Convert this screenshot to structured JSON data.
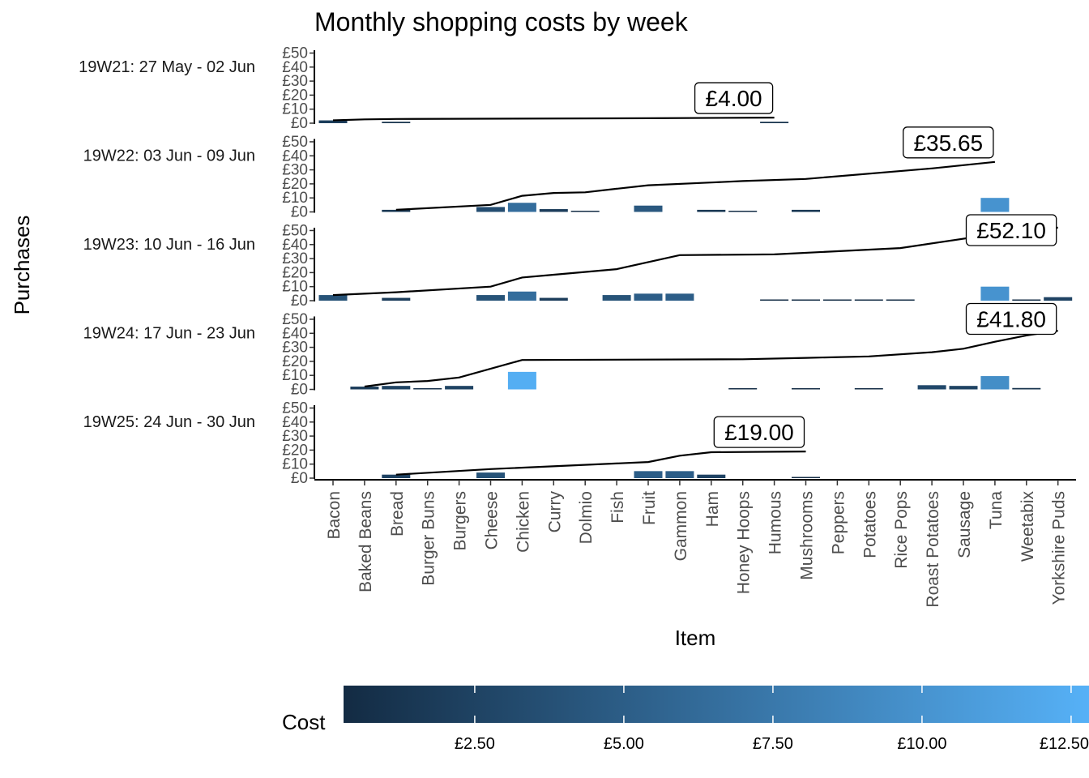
{
  "chart_data": {
    "type": "bar",
    "title": "Monthly shopping costs by week",
    "xlabel": "Item",
    "ylabel": "Purchases",
    "categories": [
      "Bacon",
      "Baked Beans",
      "Bread",
      "Burger Buns",
      "Burgers",
      "Cheese",
      "Chicken",
      "Curry",
      "Dolmio",
      "Fish",
      "Fruit",
      "Gammon",
      "Ham",
      "Honey Hoops",
      "Humous",
      "Mushrooms",
      "Peppers",
      "Potatoes",
      "Rice Pops",
      "Roast Potatoes",
      "Sausage",
      "Tuna",
      "Weetabix",
      "Yorkshire Puds"
    ],
    "y_ticks": [
      "£0",
      "£10",
      "£20",
      "£30",
      "£40",
      "£50"
    ],
    "ylim": [
      0,
      52
    ],
    "legend": {
      "title": "Cost",
      "position": "bottom",
      "range": [
        0.3,
        12.8
      ],
      "ticks": [
        {
          "value": 2.5,
          "label": "£2.50"
        },
        {
          "value": 5.0,
          "label": "£5.00"
        },
        {
          "value": 7.5,
          "label": "£7.50"
        },
        {
          "value": 10.0,
          "label": "£10.00"
        },
        {
          "value": 12.5,
          "label": "£12.50"
        }
      ],
      "colors": [
        "#132B43",
        "#56B1F7"
      ]
    },
    "line_color": "#000000",
    "panels": [
      {
        "week": "19W21: 27 May - 02 Jun",
        "total_label": "£4.00",
        "bars": [
          {
            "item": "Bacon",
            "value": 2.0
          },
          {
            "item": "Bread",
            "value": 1.0
          },
          {
            "item": "Humous",
            "value": 1.0
          }
        ],
        "cumulative": [
          {
            "x": 0,
            "y": 2.0
          },
          {
            "x": 1,
            "y": 2.7
          },
          {
            "x": 2,
            "y": 3.0
          },
          {
            "x": 10,
            "y": 3.5
          },
          {
            "x": 14,
            "y": 4.0
          }
        ]
      },
      {
        "week": "19W22: 03 Jun - 09 Jun",
        "total_label": "£35.65",
        "bars": [
          {
            "item": "Bread",
            "value": 1.5
          },
          {
            "item": "Cheese",
            "value": 3.5
          },
          {
            "item": "Chicken",
            "value": 6.5
          },
          {
            "item": "Curry",
            "value": 2.0
          },
          {
            "item": "Dolmio",
            "value": 0.5
          },
          {
            "item": "Fruit",
            "value": 4.5
          },
          {
            "item": "Ham",
            "value": 1.5
          },
          {
            "item": "Honey Hoops",
            "value": 0.5
          },
          {
            "item": "Mushrooms",
            "value": 1.5
          },
          {
            "item": "Tuna",
            "value": 10.0
          }
        ],
        "cumulative": [
          {
            "x": 2,
            "y": 1.5
          },
          {
            "x": 5,
            "y": 5.0
          },
          {
            "x": 6,
            "y": 11.5
          },
          {
            "x": 7,
            "y": 13.5
          },
          {
            "x": 8,
            "y": 14.0
          },
          {
            "x": 9,
            "y": 16.5
          },
          {
            "x": 10,
            "y": 19.0
          },
          {
            "x": 12,
            "y": 21.0
          },
          {
            "x": 13,
            "y": 22.0
          },
          {
            "x": 15,
            "y": 23.5
          },
          {
            "x": 19,
            "y": 31.0
          },
          {
            "x": 21,
            "y": 35.65
          }
        ]
      },
      {
        "week": "19W23: 10 Jun - 16 Jun",
        "total_label": "£52.10",
        "bars": [
          {
            "item": "Bacon",
            "value": 4.0
          },
          {
            "item": "Bread",
            "value": 2.0
          },
          {
            "item": "Cheese",
            "value": 4.0
          },
          {
            "item": "Chicken",
            "value": 6.5
          },
          {
            "item": "Curry",
            "value": 2.0
          },
          {
            "item": "Fish",
            "value": 4.0
          },
          {
            "item": "Fruit",
            "value": 5.0
          },
          {
            "item": "Gammon",
            "value": 5.0
          },
          {
            "item": "Humous",
            "value": 0.5
          },
          {
            "item": "Mushrooms",
            "value": 0.5
          },
          {
            "item": "Peppers",
            "value": 0.5
          },
          {
            "item": "Potatoes",
            "value": 0.5
          },
          {
            "item": "Rice Pops",
            "value": 0.5
          },
          {
            "item": "Tuna",
            "value": 10.0
          },
          {
            "item": "Weetabix",
            "value": 0.5
          },
          {
            "item": "Yorkshire Puds",
            "value": 2.5
          }
        ],
        "cumulative": [
          {
            "x": 0,
            "y": 4.0
          },
          {
            "x": 2,
            "y": 6.0
          },
          {
            "x": 5,
            "y": 10.0
          },
          {
            "x": 6,
            "y": 16.5
          },
          {
            "x": 7,
            "y": 18.5
          },
          {
            "x": 9,
            "y": 22.5
          },
          {
            "x": 10,
            "y": 27.5
          },
          {
            "x": 11,
            "y": 32.5
          },
          {
            "x": 14,
            "y": 33.0
          },
          {
            "x": 18,
            "y": 37.5
          },
          {
            "x": 21,
            "y": 47.5
          },
          {
            "x": 22,
            "y": 49.0
          },
          {
            "x": 23,
            "y": 52.1
          }
        ]
      },
      {
        "week": "19W24: 17 Jun - 23 Jun",
        "total_label": "£41.80",
        "bars": [
          {
            "item": "Baked Beans",
            "value": 2.0
          },
          {
            "item": "Bread",
            "value": 2.5
          },
          {
            "item": "Burger Buns",
            "value": 0.8
          },
          {
            "item": "Burgers",
            "value": 2.5
          },
          {
            "item": "Chicken",
            "value": 12.5
          },
          {
            "item": "Honey Hoops",
            "value": 0.5
          },
          {
            "item": "Mushrooms",
            "value": 0.5
          },
          {
            "item": "Potatoes",
            "value": 0.5
          },
          {
            "item": "Roast Potatoes",
            "value": 3.0
          },
          {
            "item": "Sausage",
            "value": 2.5
          },
          {
            "item": "Tuna",
            "value": 9.5
          },
          {
            "item": "Weetabix",
            "value": 1.0
          }
        ],
        "cumulative": [
          {
            "x": 1,
            "y": 2.0
          },
          {
            "x": 2,
            "y": 5.0
          },
          {
            "x": 3,
            "y": 6.0
          },
          {
            "x": 4,
            "y": 8.5
          },
          {
            "x": 6,
            "y": 21.0
          },
          {
            "x": 13,
            "y": 21.5
          },
          {
            "x": 15,
            "y": 22.5
          },
          {
            "x": 17,
            "y": 23.5
          },
          {
            "x": 19,
            "y": 26.5
          },
          {
            "x": 20,
            "y": 29.0
          },
          {
            "x": 21,
            "y": 34.0
          },
          {
            "x": 22,
            "y": 38.5
          },
          {
            "x": 23,
            "y": 41.8
          }
        ]
      },
      {
        "week": "19W25: 24 Jun - 30 Jun",
        "total_label": "£19.00",
        "bars": [
          {
            "item": "Bread",
            "value": 2.5
          },
          {
            "item": "Cheese",
            "value": 4.0
          },
          {
            "item": "Fruit",
            "value": 5.0
          },
          {
            "item": "Gammon",
            "value": 5.0
          },
          {
            "item": "Ham",
            "value": 2.5
          },
          {
            "item": "Mushrooms",
            "value": 0.5
          }
        ],
        "cumulative": [
          {
            "x": 2,
            "y": 2.5
          },
          {
            "x": 5,
            "y": 6.5
          },
          {
            "x": 10,
            "y": 11.5
          },
          {
            "x": 11,
            "y": 16.0
          },
          {
            "x": 12,
            "y": 18.5
          },
          {
            "x": 15,
            "y": 19.0
          }
        ]
      }
    ]
  }
}
